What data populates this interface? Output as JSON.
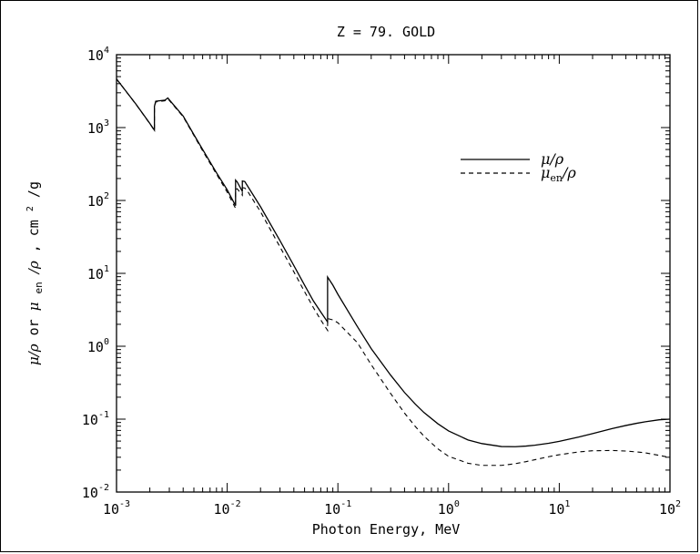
{
  "chart_data": {
    "type": "line",
    "title": "Z = 79.  GOLD",
    "xlabel": "Photon Energy, MeV",
    "ylabel": "μ/ρ or μ_en/ρ, cm²/g",
    "xscale": "log",
    "yscale": "log",
    "xlim": [
      0.001,
      100
    ],
    "ylim": [
      0.01,
      10000
    ],
    "grid": false,
    "legend_position": "top-right",
    "x_ticks": [
      {
        "base": "10",
        "exp": "-3",
        "value": 0.001
      },
      {
        "base": "10",
        "exp": "-2",
        "value": 0.01
      },
      {
        "base": "10",
        "exp": "-1",
        "value": 0.1
      },
      {
        "base": "10",
        "exp": "0",
        "value": 1
      },
      {
        "base": "10",
        "exp": "1",
        "value": 10
      },
      {
        "base": "10",
        "exp": "2",
        "value": 100
      }
    ],
    "y_ticks": [
      {
        "base": "10",
        "exp": "-2",
        "value": 0.01
      },
      {
        "base": "10",
        "exp": "-1",
        "value": 0.1
      },
      {
        "base": "10",
        "exp": "0",
        "value": 1
      },
      {
        "base": "10",
        "exp": "1",
        "value": 10
      },
      {
        "base": "10",
        "exp": "2",
        "value": 100
      },
      {
        "base": "10",
        "exp": "3",
        "value": 1000
      },
      {
        "base": "10",
        "exp": "4",
        "value": 10000
      }
    ],
    "series": [
      {
        "name": "μ/ρ",
        "style": "solid",
        "points": [
          [
            0.001,
            4650
          ],
          [
            0.0015,
            2090
          ],
          [
            0.002,
            1140
          ],
          [
            0.0022,
            920
          ],
          [
            0.0022,
            1950
          ],
          [
            0.00226,
            2300
          ],
          [
            0.00274,
            2380
          ],
          [
            0.00291,
            2550
          ],
          [
            0.003,
            2400
          ],
          [
            0.004,
            1440
          ],
          [
            0.005,
            800
          ],
          [
            0.006,
            500
          ],
          [
            0.008,
            240
          ],
          [
            0.01,
            140
          ],
          [
            0.0119,
            85
          ],
          [
            0.0119,
            190
          ],
          [
            0.0123,
            180
          ],
          [
            0.0137,
            133
          ],
          [
            0.0137,
            185
          ],
          [
            0.0144,
            182
          ],
          [
            0.015,
            165
          ],
          [
            0.02,
            82
          ],
          [
            0.03,
            28
          ],
          [
            0.04,
            12.8
          ],
          [
            0.05,
            6.9
          ],
          [
            0.06,
            4.2
          ],
          [
            0.07,
            2.95
          ],
          [
            0.0807,
            2.15
          ],
          [
            0.0807,
            8.9
          ],
          [
            0.09,
            6.9
          ],
          [
            0.1,
            5.16
          ],
          [
            0.15,
            1.86
          ],
          [
            0.2,
            0.928
          ],
          [
            0.3,
            0.4
          ],
          [
            0.4,
            0.232
          ],
          [
            0.5,
            0.161
          ],
          [
            0.6,
            0.123
          ],
          [
            0.8,
            0.0865
          ],
          [
            1,
            0.0689
          ],
          [
            1.5,
            0.0518
          ],
          [
            2,
            0.0462
          ],
          [
            3,
            0.0421
          ],
          [
            4,
            0.0419
          ],
          [
            5,
            0.0427
          ],
          [
            6,
            0.0439
          ],
          [
            8,
            0.0466
          ],
          [
            10,
            0.0496
          ],
          [
            15,
            0.0568
          ],
          [
            20,
            0.0634
          ],
          [
            30,
            0.0742
          ],
          [
            40,
            0.0819
          ],
          [
            50,
            0.0877
          ],
          [
            60,
            0.092
          ],
          [
            80,
            0.098
          ],
          [
            100,
            0.1
          ]
        ]
      },
      {
        "name": "μ_en/ρ",
        "style": "dashed",
        "points": [
          [
            0.001,
            4630
          ],
          [
            0.0015,
            2080
          ],
          [
            0.002,
            1130
          ],
          [
            0.0022,
            910
          ],
          [
            0.0022,
            1900
          ],
          [
            0.00226,
            2250
          ],
          [
            0.00274,
            2330
          ],
          [
            0.00291,
            2480
          ],
          [
            0.003,
            2350
          ],
          [
            0.004,
            1410
          ],
          [
            0.005,
            780
          ],
          [
            0.006,
            480
          ],
          [
            0.008,
            230
          ],
          [
            0.01,
            130
          ],
          [
            0.0119,
            78
          ],
          [
            0.0119,
            140
          ],
          [
            0.0123,
            145
          ],
          [
            0.0137,
            118
          ],
          [
            0.0137,
            150
          ],
          [
            0.0144,
            148
          ],
          [
            0.015,
            140
          ],
          [
            0.02,
            70
          ],
          [
            0.03,
            23
          ],
          [
            0.04,
            10.5
          ],
          [
            0.05,
            5.6
          ],
          [
            0.06,
            3.4
          ],
          [
            0.07,
            2.3
          ],
          [
            0.0807,
            1.65
          ],
          [
            0.0807,
            2.4
          ],
          [
            0.09,
            2.3
          ],
          [
            0.1,
            2.1
          ],
          [
            0.15,
            1.12
          ],
          [
            0.2,
            0.558
          ],
          [
            0.3,
            0.224
          ],
          [
            0.4,
            0.121
          ],
          [
            0.5,
            0.0795
          ],
          [
            0.6,
            0.0583
          ],
          [
            0.8,
            0.0391
          ],
          [
            1,
            0.0309
          ],
          [
            1.5,
            0.0248
          ],
          [
            2,
            0.0232
          ],
          [
            3,
            0.0232
          ],
          [
            4,
            0.0245
          ],
          [
            5,
            0.0261
          ],
          [
            6,
            0.0277
          ],
          [
            8,
            0.0305
          ],
          [
            10,
            0.0325
          ],
          [
            15,
            0.0355
          ],
          [
            20,
            0.0368
          ],
          [
            30,
            0.0372
          ],
          [
            40,
            0.0365
          ],
          [
            50,
            0.0355
          ],
          [
            60,
            0.0345
          ],
          [
            80,
            0.0318
          ],
          [
            100,
            0.0298
          ]
        ]
      }
    ]
  }
}
